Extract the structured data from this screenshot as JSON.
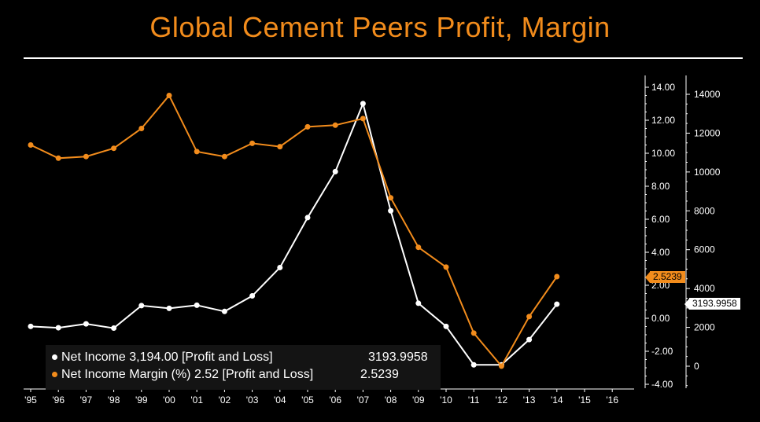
{
  "title": "Global Cement Peers Profit, Margin",
  "chart_data": {
    "type": "line",
    "x": [
      "'95",
      "'96",
      "'97",
      "'98",
      "'99",
      "'00",
      "'01",
      "'02",
      "'03",
      "'04",
      "'05",
      "'06",
      "'07",
      "'08",
      "'09",
      "'10",
      "'11",
      "'12",
      "'13",
      "'14",
      "'15",
      "'16"
    ],
    "left_axis": {
      "ticks": [
        "14.00",
        "12.00",
        "10.00",
        "8.00",
        "6.00",
        "4.00",
        "2.00",
        "0.00",
        "-2.00",
        "-4.00"
      ],
      "ylim": [
        -4.2,
        14.5
      ]
    },
    "right_axis": {
      "ticks": [
        "14000",
        "12000",
        "10000",
        "8000",
        "6000",
        "4000",
        "2000",
        "0"
      ],
      "ylim": [
        -900,
        14300
      ]
    },
    "series": [
      {
        "name": "Net Income 3,194.00 [Profit and Loss]",
        "axis": "right",
        "color": "#ffffff",
        "last_value": "3193.9958",
        "values": [
          2050,
          1980,
          2180,
          1960,
          3120,
          2980,
          3140,
          2820,
          3620,
          5080,
          7650,
          10020,
          13520,
          8000,
          3240,
          2050,
          70,
          70,
          1370,
          3194,
          null,
          null
        ]
      },
      {
        "name": "Net Income Margin (%) 2.52 [Profit and Loss]",
        "axis": "left",
        "color": "#f28c1c",
        "last_value": "2.5239",
        "values": [
          10.5,
          9.7,
          9.8,
          10.3,
          11.5,
          13.5,
          10.1,
          9.8,
          10.6,
          10.4,
          11.6,
          11.7,
          12.1,
          7.3,
          4.3,
          3.1,
          -0.9,
          -2.9,
          0.1,
          2.5239,
          null,
          null
        ]
      }
    ],
    "grid": false
  }
}
